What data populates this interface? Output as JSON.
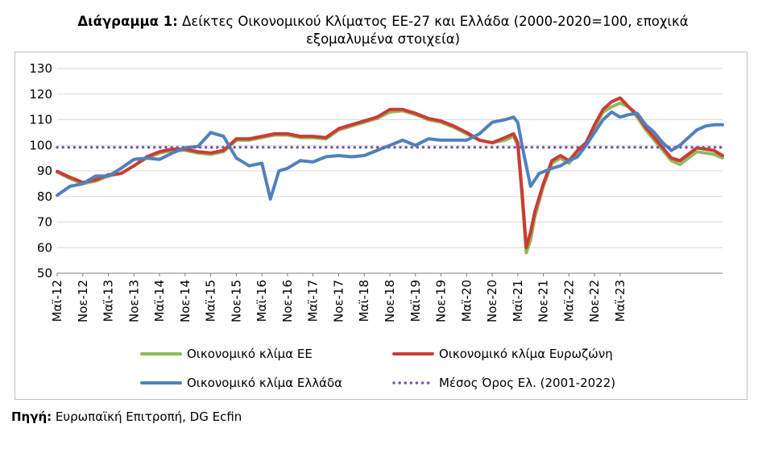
{
  "title": {
    "bold": "Διάγραμμα 1:",
    "line1": "Δείκτες Οικονομικού Κλίματος ΕΕ-27 και Ελλάδα (2000-2020=100, εποχικά",
    "line2": "εξομαλυμένα στοιχεία)"
  },
  "source": {
    "bold": "Πηγή:",
    "text": "Ευρωπαϊκή Επιτροπή, DG Ecfin"
  },
  "colors": {
    "eu": "#8fbc5a",
    "euro": "#cc3b35",
    "greece": "#4f81bd",
    "mean": "#7a5aa8",
    "grid": "#d9d9d9"
  },
  "chart_data": {
    "type": "line",
    "ylim": [
      50,
      130
    ],
    "yticks": [
      50,
      60,
      70,
      80,
      90,
      100,
      110,
      120,
      130
    ],
    "x_tick_labels": [
      "Μαϊ-12",
      "Νοε-12",
      "Μαϊ-13",
      "Νοε-13",
      "Μαϊ-14",
      "Νοε-14",
      "Μαϊ-15",
      "Νοε-15",
      "Μαϊ-16",
      "Νοε-16",
      "Μαϊ-17",
      "Νοε-17",
      "Μαϊ-18",
      "Νοε-18",
      "Μαϊ-19",
      "Νοε-19",
      "Μαϊ-20",
      "Νοε-20",
      "Μαϊ-21",
      "Νοε-21",
      "Μαϊ-22",
      "Νοε-22",
      "Μαϊ-23"
    ],
    "x_start": "2012-05",
    "x_end": "2023-05",
    "series": [
      {
        "name": "Οικονομικό κλίμα ΕΕ",
        "values": [
          [
            0,
            89.5
          ],
          [
            3,
            87
          ],
          [
            6,
            85
          ],
          [
            9,
            86
          ],
          [
            12,
            88
          ],
          [
            15,
            89
          ],
          [
            18,
            92
          ],
          [
            21,
            95
          ],
          [
            24,
            97
          ],
          [
            27,
            98
          ],
          [
            30,
            98
          ],
          [
            33,
            97
          ],
          [
            36,
            96.5
          ],
          [
            39,
            97.5
          ],
          [
            42,
            102
          ],
          [
            45,
            102
          ],
          [
            48,
            103
          ],
          [
            51,
            104
          ],
          [
            54,
            104
          ],
          [
            57,
            103
          ],
          [
            60,
            103
          ],
          [
            63,
            102.5
          ],
          [
            66,
            106
          ],
          [
            69,
            107.5
          ],
          [
            72,
            109
          ],
          [
            75,
            110.5
          ],
          [
            78,
            113
          ],
          [
            81,
            113.5
          ],
          [
            84,
            112
          ],
          [
            87,
            110
          ],
          [
            90,
            109
          ],
          [
            93,
            107
          ],
          [
            96,
            104.5
          ],
          [
            99,
            102
          ],
          [
            102,
            101
          ],
          [
            105,
            102
          ],
          [
            107,
            103.5
          ],
          [
            108,
            100
          ],
          [
            109,
            80
          ],
          [
            110,
            58
          ],
          [
            111,
            63
          ],
          [
            112,
            72
          ],
          [
            114,
            84
          ],
          [
            116,
            93
          ],
          [
            118,
            95
          ],
          [
            120,
            93
          ],
          [
            122,
            97
          ],
          [
            124,
            100
          ],
          [
            126,
            107
          ],
          [
            128,
            113
          ],
          [
            130,
            115
          ],
          [
            132,
            116.5
          ],
          [
            134,
            115
          ],
          [
            136,
            111
          ],
          [
            138,
            106
          ],
          [
            140,
            102
          ],
          [
            142,
            98
          ],
          [
            144,
            94
          ],
          [
            146,
            92.5
          ],
          [
            148,
            95
          ],
          [
            150,
            97.5
          ],
          [
            152,
            97
          ],
          [
            154,
            96.5
          ],
          [
            156,
            95
          ]
        ]
      },
      {
        "name": "Οικονομικό κλίμα Ευρωζώνη",
        "values": [
          [
            0,
            89.8
          ],
          [
            3,
            87.5
          ],
          [
            6,
            85.5
          ],
          [
            9,
            86.5
          ],
          [
            12,
            88.5
          ],
          [
            15,
            89
          ],
          [
            18,
            92
          ],
          [
            21,
            95.5
          ],
          [
            24,
            97.5
          ],
          [
            27,
            98.5
          ],
          [
            30,
            98.5
          ],
          [
            33,
            97.5
          ],
          [
            36,
            97
          ],
          [
            39,
            98
          ],
          [
            42,
            102.5
          ],
          [
            45,
            102.5
          ],
          [
            48,
            103.5
          ],
          [
            51,
            104.5
          ],
          [
            54,
            104.5
          ],
          [
            57,
            103.5
          ],
          [
            60,
            103.5
          ],
          [
            63,
            103
          ],
          [
            66,
            106.5
          ],
          [
            69,
            108
          ],
          [
            72,
            109.5
          ],
          [
            75,
            111
          ],
          [
            78,
            114
          ],
          [
            81,
            114
          ],
          [
            84,
            112.5
          ],
          [
            87,
            110.5
          ],
          [
            90,
            109.5
          ],
          [
            93,
            107.5
          ],
          [
            96,
            105
          ],
          [
            99,
            102
          ],
          [
            102,
            101
          ],
          [
            105,
            103
          ],
          [
            107,
            104.5
          ],
          [
            108,
            101
          ],
          [
            109,
            82
          ],
          [
            110,
            60
          ],
          [
            111,
            66
          ],
          [
            112,
            74
          ],
          [
            114,
            85
          ],
          [
            116,
            94
          ],
          [
            118,
            96
          ],
          [
            120,
            94
          ],
          [
            122,
            98
          ],
          [
            124,
            101
          ],
          [
            126,
            108
          ],
          [
            128,
            114
          ],
          [
            130,
            117
          ],
          [
            132,
            118.5
          ],
          [
            134,
            115
          ],
          [
            136,
            112
          ],
          [
            138,
            107
          ],
          [
            140,
            103
          ],
          [
            142,
            99
          ],
          [
            144,
            95
          ],
          [
            146,
            94
          ],
          [
            148,
            96.5
          ],
          [
            150,
            99
          ],
          [
            152,
            98.5
          ],
          [
            154,
            98
          ],
          [
            156,
            96
          ]
        ]
      },
      {
        "name": "Οικονομικό κλίμα Ελλάδα",
        "values": [
          [
            0,
            80.5
          ],
          [
            3,
            84
          ],
          [
            6,
            85
          ],
          [
            9,
            88
          ],
          [
            12,
            88
          ],
          [
            15,
            91
          ],
          [
            18,
            94.5
          ],
          [
            21,
            95
          ],
          [
            24,
            94.5
          ],
          [
            27,
            97
          ],
          [
            30,
            99
          ],
          [
            33,
            99.5
          ],
          [
            36,
            105
          ],
          [
            39,
            103.5
          ],
          [
            42,
            95
          ],
          [
            45,
            92
          ],
          [
            48,
            93
          ],
          [
            50,
            79
          ],
          [
            52,
            90
          ],
          [
            54,
            91
          ],
          [
            57,
            94
          ],
          [
            60,
            93.5
          ],
          [
            63,
            95.5
          ],
          [
            66,
            96
          ],
          [
            69,
            95.5
          ],
          [
            72,
            96
          ],
          [
            75,
            98
          ],
          [
            78,
            100
          ],
          [
            81,
            102
          ],
          [
            84,
            100
          ],
          [
            87,
            102.5
          ],
          [
            90,
            102
          ],
          [
            93,
            102
          ],
          [
            96,
            102
          ],
          [
            99,
            104.5
          ],
          [
            102,
            109
          ],
          [
            105,
            110
          ],
          [
            107,
            111
          ],
          [
            108,
            109
          ],
          [
            109,
            100
          ],
          [
            111,
            84
          ],
          [
            113,
            89
          ],
          [
            116,
            91
          ],
          [
            118,
            92
          ],
          [
            120,
            94
          ],
          [
            122,
            95.5
          ],
          [
            124,
            100
          ],
          [
            126,
            105
          ],
          [
            128,
            110
          ],
          [
            130,
            113
          ],
          [
            132,
            111
          ],
          [
            134,
            112
          ],
          [
            136,
            112.5
          ],
          [
            138,
            108
          ],
          [
            140,
            105
          ],
          [
            142,
            101
          ],
          [
            144,
            98
          ],
          [
            146,
            100
          ],
          [
            148,
            103
          ],
          [
            150,
            106
          ],
          [
            152,
            107.5
          ],
          [
            154,
            108
          ],
          [
            156,
            108
          ]
        ]
      },
      {
        "name": "Μέσος Όρος Ελ. (2001-2022)",
        "values": [
          [
            0,
            99.2
          ],
          [
            156,
            99.2
          ]
        ]
      }
    ]
  }
}
